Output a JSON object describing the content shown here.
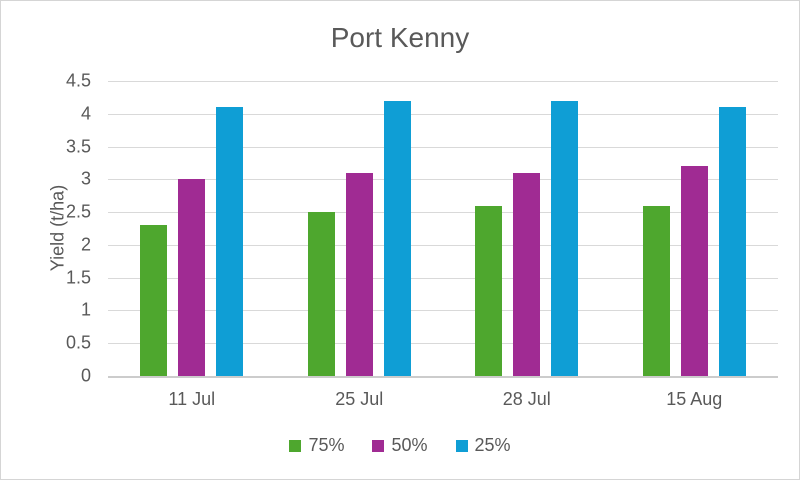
{
  "title": "Port Kenny",
  "chart_data": {
    "type": "bar",
    "title": "Port Kenny",
    "categories": [
      "11 Jul",
      "25 Jul",
      "28 Jul",
      "15 Aug"
    ],
    "series": [
      {
        "name": "75%",
        "color": "#4EA72E",
        "values": [
          2.3,
          2.5,
          2.6,
          2.6
        ]
      },
      {
        "name": "50%",
        "color": "#A02B93",
        "values": [
          3.0,
          3.1,
          3.1,
          3.2
        ]
      },
      {
        "name": "25%",
        "color": "#0F9ED5",
        "values": [
          4.1,
          4.2,
          4.2,
          4.1
        ]
      }
    ],
    "xlabel": "",
    "ylabel": "Yield (t/ha)",
    "ylim": [
      0,
      4.5
    ],
    "ytick_step": 0.5,
    "grid": true,
    "legend_position": "bottom"
  },
  "colors": {
    "text": "#595959",
    "gridline": "#D9D9D9",
    "axis_line": "#CCCCCC",
    "background": "#FFFFFF",
    "border": "#D5D5D5"
  }
}
